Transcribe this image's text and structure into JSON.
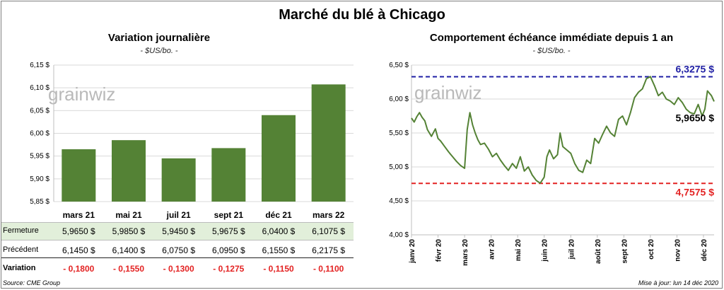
{
  "title": "Marché du blé à Chicago",
  "source": "Source: CME Group",
  "updated": "Mise à jour: lun 14 déc 2020",
  "colors": {
    "bar": "#548235",
    "line": "#548235",
    "high": "#1f1fa5",
    "low": "#e32222",
    "row_highlight": "#e2efda",
    "negative": "#e32222"
  },
  "table": {
    "row_labels": {
      "close": "Fermeture",
      "previous": "Précédent",
      "variation": "Variation"
    },
    "close": [
      "5,9650 $",
      "5,9850 $",
      "5,9450 $",
      "5,9675 $",
      "6,0400 $",
      "6,1075 $"
    ],
    "previous": [
      "6,1450 $",
      "6,1400 $",
      "6,0750 $",
      "6,0950 $",
      "6,1550 $",
      "6,2175 $"
    ],
    "variation": [
      "- 0,1800",
      "- 0,1550",
      "- 0,1300",
      "- 0,1275",
      "- 0,1150",
      "- 0,1100"
    ]
  },
  "chart_data": [
    {
      "type": "bar",
      "title": "Variation journalière",
      "subtitle": "- $US/bo. -",
      "watermark": "grainwiz",
      "categories": [
        "mars 21",
        "mai 21",
        "juil 21",
        "sept 21",
        "déc 21",
        "mars 22"
      ],
      "values": [
        5.965,
        5.985,
        5.945,
        5.9675,
        6.04,
        6.1075
      ],
      "ylim": [
        5.85,
        6.15
      ],
      "yticks": [
        "6,15 $",
        "6,10 $",
        "6,05 $",
        "6,00 $",
        "5,95 $",
        "5,90 $",
        "5,85 $"
      ],
      "ytick_values": [
        6.15,
        6.1,
        6.05,
        6.0,
        5.95,
        5.9,
        5.85
      ]
    },
    {
      "type": "line",
      "title": "Comportement échéance immédiate depuis 1 an",
      "subtitle": "- $US/bo. -",
      "watermark": "grainwiz",
      "ylim": [
        4.0,
        6.5
      ],
      "yticks": [
        "6,50 $",
        "6,00 $",
        "5,50 $",
        "5,00 $",
        "4,50 $",
        "4,00 $"
      ],
      "ytick_values": [
        6.5,
        6.0,
        5.5,
        5.0,
        4.5,
        4.0
      ],
      "xticks": [
        "janv 20",
        "févr 20",
        "mars 20",
        "avr 20",
        "mai 20",
        "juin 20",
        "juil 20",
        "août 20",
        "sept 20",
        "oct 20",
        "nov 20",
        "déc 20"
      ],
      "high": {
        "value": 6.3275,
        "label": "6,3275 $"
      },
      "low": {
        "value": 4.7575,
        "label": "4,7575 $"
      },
      "last": {
        "value": 5.965,
        "label": "5,9650 $"
      },
      "series": [
        {
          "x": [
            0,
            0.1,
            0.2,
            0.3,
            0.4,
            0.5,
            0.6,
            0.75,
            0.9,
            1.0,
            1.1,
            1.25,
            1.4,
            1.55,
            1.7,
            1.85,
            2.0,
            2.1,
            2.2,
            2.3,
            2.4,
            2.5,
            2.6,
            2.75,
            2.9,
            3.05,
            3.2,
            3.35,
            3.5,
            3.65,
            3.8,
            3.95,
            4.1,
            4.25,
            4.4,
            4.55,
            4.7,
            4.85,
            5.0,
            5.1,
            5.2,
            5.35,
            5.5,
            5.6,
            5.7,
            5.85,
            6.0,
            6.15,
            6.3,
            6.45,
            6.6,
            6.75,
            6.9,
            7.05,
            7.2,
            7.35,
            7.5,
            7.65,
            7.8,
            7.95,
            8.1,
            8.25,
            8.4,
            8.55,
            8.7,
            8.85,
            9.0,
            9.15,
            9.3,
            9.45,
            9.6,
            9.75,
            9.9,
            10.05,
            10.2,
            10.35,
            10.5,
            10.65,
            10.8,
            10.95,
            11.05,
            11.15,
            11.3,
            11.4
          ],
          "values": [
            5.72,
            5.66,
            5.74,
            5.8,
            5.73,
            5.68,
            5.55,
            5.45,
            5.56,
            5.42,
            5.38,
            5.3,
            5.22,
            5.15,
            5.08,
            5.02,
            4.98,
            5.55,
            5.8,
            5.62,
            5.5,
            5.4,
            5.33,
            5.35,
            5.26,
            5.15,
            5.2,
            5.1,
            5.02,
            4.95,
            5.05,
            4.98,
            5.15,
            4.94,
            5.0,
            4.88,
            4.8,
            4.76,
            4.85,
            5.15,
            5.25,
            5.12,
            5.18,
            5.5,
            5.3,
            5.25,
            5.2,
            5.05,
            4.95,
            4.92,
            5.1,
            5.05,
            5.42,
            5.35,
            5.48,
            5.6,
            5.5,
            5.45,
            5.7,
            5.75,
            5.62,
            5.8,
            6.02,
            6.1,
            6.15,
            6.3,
            6.33,
            6.2,
            6.05,
            6.1,
            6.0,
            5.97,
            5.92,
            6.02,
            5.95,
            5.85,
            5.8,
            5.78,
            5.92,
            5.75,
            5.85,
            6.12,
            6.05,
            5.965
          ]
        }
      ]
    }
  ]
}
